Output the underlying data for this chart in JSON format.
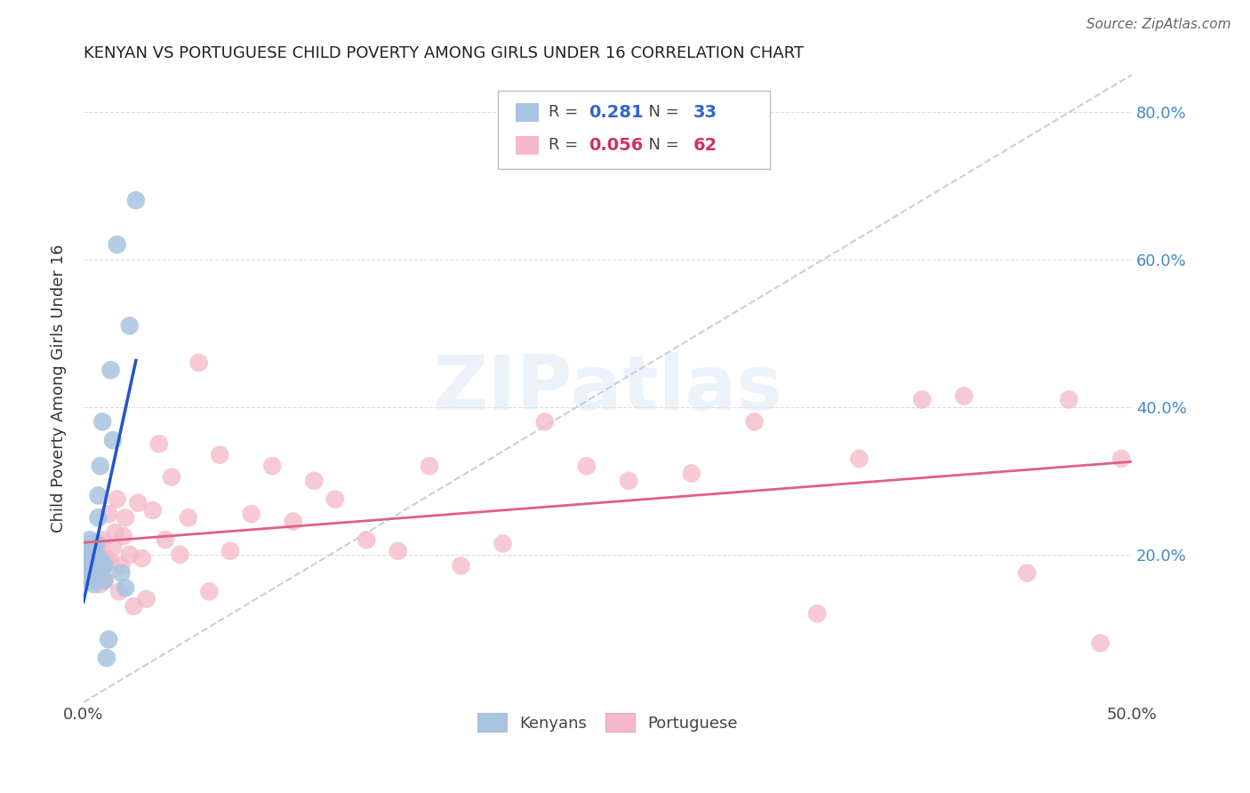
{
  "title": "KENYAN VS PORTUGUESE CHILD POVERTY AMONG GIRLS UNDER 16 CORRELATION CHART",
  "source": "Source: ZipAtlas.com",
  "ylabel": "Child Poverty Among Girls Under 16",
  "xlim": [
    0.0,
    0.5
  ],
  "ylim": [
    0.0,
    0.85
  ],
  "kenyan_color": "#a8c4e0",
  "portuguese_color": "#f4b8c8",
  "kenyan_line_color": "#2255cc",
  "portuguese_line_color": "#e06080",
  "dash_color": "#ccccdd",
  "R_kenyan": 0.281,
  "N_kenyan": 33,
  "R_portuguese": 0.056,
  "N_portuguese": 62,
  "kenyan_x": [
    0.0,
    0.001,
    0.001,
    0.002,
    0.002,
    0.003,
    0.003,
    0.003,
    0.004,
    0.004,
    0.005,
    0.005,
    0.005,
    0.006,
    0.006,
    0.006,
    0.007,
    0.007,
    0.008,
    0.008,
    0.009,
    0.009,
    0.01,
    0.01,
    0.011,
    0.012,
    0.013,
    0.014,
    0.016,
    0.018,
    0.02,
    0.022,
    0.025
  ],
  "kenyan_y": [
    0.185,
    0.175,
    0.21,
    0.165,
    0.195,
    0.17,
    0.22,
    0.195,
    0.18,
    0.215,
    0.16,
    0.2,
    0.185,
    0.175,
    0.215,
    0.195,
    0.25,
    0.28,
    0.195,
    0.32,
    0.185,
    0.38,
    0.165,
    0.185,
    0.06,
    0.085,
    0.45,
    0.355,
    0.62,
    0.175,
    0.155,
    0.51,
    0.68
  ],
  "portuguese_x": [
    0.001,
    0.002,
    0.003,
    0.004,
    0.005,
    0.005,
    0.006,
    0.007,
    0.007,
    0.008,
    0.009,
    0.009,
    0.01,
    0.01,
    0.011,
    0.012,
    0.013,
    0.014,
    0.015,
    0.016,
    0.017,
    0.018,
    0.019,
    0.02,
    0.022,
    0.024,
    0.026,
    0.028,
    0.03,
    0.033,
    0.036,
    0.039,
    0.042,
    0.046,
    0.05,
    0.055,
    0.06,
    0.065,
    0.07,
    0.08,
    0.09,
    0.1,
    0.11,
    0.12,
    0.135,
    0.15,
    0.165,
    0.18,
    0.2,
    0.22,
    0.24,
    0.26,
    0.29,
    0.32,
    0.35,
    0.37,
    0.4,
    0.42,
    0.45,
    0.47,
    0.485,
    0.495
  ],
  "portuguese_y": [
    0.185,
    0.19,
    0.175,
    0.21,
    0.165,
    0.2,
    0.18,
    0.17,
    0.215,
    0.16,
    0.195,
    0.22,
    0.17,
    0.165,
    0.195,
    0.255,
    0.19,
    0.21,
    0.23,
    0.275,
    0.15,
    0.185,
    0.225,
    0.25,
    0.2,
    0.13,
    0.27,
    0.195,
    0.14,
    0.26,
    0.35,
    0.22,
    0.305,
    0.2,
    0.25,
    0.46,
    0.15,
    0.335,
    0.205,
    0.255,
    0.32,
    0.245,
    0.3,
    0.275,
    0.22,
    0.205,
    0.32,
    0.185,
    0.215,
    0.38,
    0.32,
    0.3,
    0.31,
    0.38,
    0.12,
    0.33,
    0.41,
    0.415,
    0.175,
    0.41,
    0.08,
    0.33
  ],
  "background_color": "#ffffff",
  "grid_color": "#dddddd",
  "watermark": "ZIPatlas"
}
